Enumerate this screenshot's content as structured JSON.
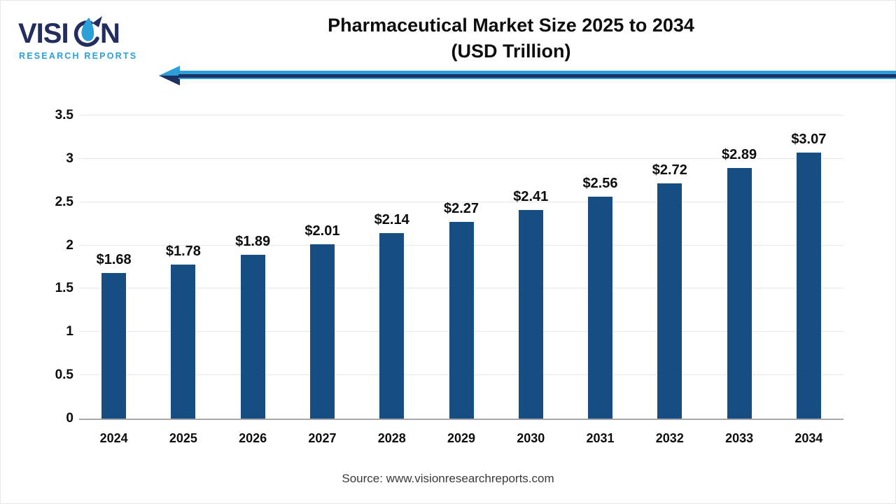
{
  "logo": {
    "brand": "VISION",
    "brand_prefix": "VISI",
    "brand_suffix": "N",
    "tagline": "RESEARCH REPORTS",
    "navy": "#232e5f",
    "blue": "#2a9fd8"
  },
  "title": {
    "line1": "Pharmaceutical Market Size 2025 to 2034",
    "line2": "(USD Trillion)"
  },
  "decor": {
    "arrow_light_blue": "#2d9ed9",
    "arrow_navy": "#1b3161"
  },
  "source": "Source: www.visionresearchreports.com",
  "chart_data": {
    "type": "bar",
    "title": "Pharmaceutical Market Size 2025 to 2034 (USD Trillion)",
    "categories": [
      "2024",
      "2025",
      "2026",
      "2027",
      "2028",
      "2029",
      "2030",
      "2031",
      "2032",
      "2033",
      "2034"
    ],
    "values": [
      1.68,
      1.78,
      1.89,
      2.01,
      2.14,
      2.27,
      2.41,
      2.56,
      2.72,
      2.89,
      3.07
    ],
    "labels": [
      "$1.68",
      "$1.78",
      "$1.89",
      "$2.01",
      "$2.14",
      "$2.27",
      "$2.41",
      "$2.56",
      "$2.72",
      "$2.89",
      "$3.07"
    ],
    "xlabel": "",
    "ylabel": "",
    "ylim": [
      0,
      3.5
    ],
    "yticks": [
      0,
      0.5,
      1,
      1.5,
      2,
      2.5,
      3,
      3.5
    ],
    "grid": true,
    "legend": "none",
    "bar_color": "#164d82",
    "gridline_color": "#e7e7e7",
    "axis_line_color": "#a8a8a8",
    "label_color": "#0d0d0d"
  }
}
